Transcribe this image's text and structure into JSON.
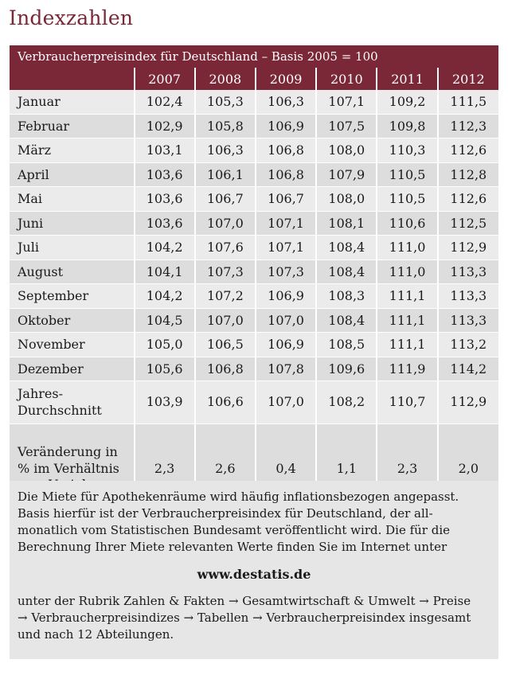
{
  "title": "Indexzahlen",
  "table": {
    "caption": "Verbraucherpreisindex für Deutschland – Basis 2005 = 100",
    "years": [
      "2007",
      "2008",
      "2009",
      "2010",
      "2011",
      "2012"
    ],
    "rows": [
      {
        "label": "Januar",
        "values": [
          "102,4",
          "105,3",
          "106,3",
          "107,1",
          "109,2",
          "111,5"
        ]
      },
      {
        "label": "Februar",
        "values": [
          "102,9",
          "105,8",
          "106,9",
          "107,5",
          "109,8",
          "112,3"
        ]
      },
      {
        "label": "März",
        "values": [
          "103,1",
          "106,3",
          "106,8",
          "108,0",
          "110,3",
          "112,6"
        ]
      },
      {
        "label": "April",
        "values": [
          "103,6",
          "106,1",
          "106,8",
          "107,9",
          "110,5",
          "112,8"
        ]
      },
      {
        "label": "Mai",
        "values": [
          "103,6",
          "106,7",
          "106,7",
          "108,0",
          "110,5",
          "112,6"
        ]
      },
      {
        "label": "Juni",
        "values": [
          "103,6",
          "107,0",
          "107,1",
          "108,1",
          "110,6",
          "112,5"
        ]
      },
      {
        "label": "Juli",
        "values": [
          "104,2",
          "107,6",
          "107,1",
          "108,4",
          "111,0",
          "112,9"
        ]
      },
      {
        "label": "August",
        "values": [
          "104,1",
          "107,3",
          "107,3",
          "108,4",
          "111,0",
          "113,3"
        ]
      },
      {
        "label": "September",
        "values": [
          "104,2",
          "107,2",
          "106,9",
          "108,3",
          "111,1",
          "113,3"
        ]
      },
      {
        "label": "Oktober",
        "values": [
          "104,5",
          "107,0",
          "107,0",
          "108,4",
          "111,1",
          "113,3"
        ]
      },
      {
        "label": "November",
        "values": [
          "105,0",
          "106,5",
          "106,9",
          "108,5",
          "111,1",
          "113,2"
        ]
      },
      {
        "label": "Dezember",
        "values": [
          "105,6",
          "106,8",
          "107,8",
          "109,6",
          "111,9",
          "114,2"
        ]
      }
    ],
    "average": {
      "label_line1": "Jahres-",
      "label_line2": "Durchschnitt",
      "values": [
        "103,9",
        "106,6",
        "107,0",
        "108,2",
        "110,7",
        "112,9"
      ]
    },
    "change": {
      "label_line1": "Veränderung in",
      "label_line2": "% im Verhältnis",
      "label_line3": "zum Vorjahr",
      "values": [
        "2,3",
        "2,6",
        "0,4",
        "1,1",
        "2,3",
        "2,0"
      ]
    }
  },
  "note": {
    "intro_line1": "Die Miete für Apothekenräume wird häufig inflationsbezogen angepasst.",
    "intro_line2": "Basis hierfür ist der Verbraucherpreisindex für Deutschland, der all-",
    "intro_line3": "monatlich vom Statistischen Bundesamt veröffentlicht wird. Die für die",
    "intro_line4": "Berechnung Ihrer Miete relevanten Werte finden Sie im Internet unter",
    "url": "www.destatis.de",
    "path_line1": "unter der Rubrik Zahlen & Fakten → Gesamtwirtschaft & Umwelt → Preise",
    "path_line2": "→ Verbraucherpreisindizes → Tabellen → Verbraucherpreisindex insgesamt",
    "path_line3": "und nach 12 Abteilungen."
  }
}
